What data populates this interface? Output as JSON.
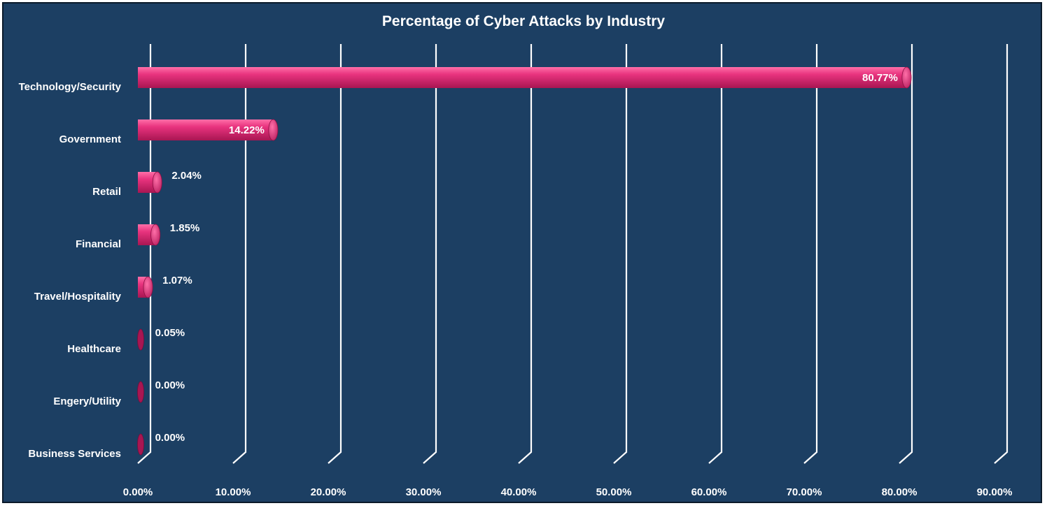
{
  "chart_data": {
    "type": "bar",
    "orientation": "horizontal",
    "title": "Percentage of Cyber Attacks by Industry",
    "xlabel": "",
    "ylabel": "",
    "categories": [
      "Technology/Security",
      "Government",
      "Retail",
      "Financial",
      "Travel/Hospitality",
      "Healthcare",
      "Engery/Utility",
      "Business Services"
    ],
    "values": [
      80.77,
      14.22,
      2.04,
      1.85,
      1.07,
      0.05,
      0.0,
      0.0
    ],
    "data_labels": [
      "80.77%",
      "14.22%",
      "2.04%",
      "1.85%",
      "1.07%",
      "0.05%",
      "0.00%",
      "0.00%"
    ],
    "xlim": [
      0,
      90
    ],
    "x_ticks": [
      0,
      10,
      20,
      30,
      40,
      50,
      60,
      70,
      80,
      90
    ],
    "x_tick_labels": [
      "0.00%",
      "10.00%",
      "20.00%",
      "30.00%",
      "40.00%",
      "50.00%",
      "60.00%",
      "70.00%",
      "80.00%",
      "90.00%"
    ],
    "grid": true,
    "legend": "none",
    "style": "3d-cylinder",
    "colors": {
      "background": "#1c3f63",
      "bar": "#e8337e",
      "bar_light": "#ff6fa8",
      "bar_dark": "#a81652",
      "text": "#ffffff",
      "grid": "#ffffff"
    }
  }
}
